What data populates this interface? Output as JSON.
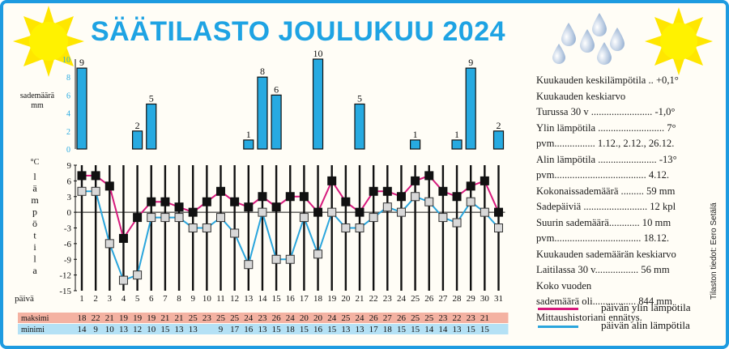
{
  "title": "SÄÄTILASTO JOULUKUU 2024",
  "credit": "Tilaston tiedot: Eero Setälä",
  "stats": [
    "Kuukauden keskilämpötila .. +0,1°",
    "Kuukauden keskiarvo",
    "Turussa 30 v ........................ -1,0°",
    "Ylin lämpötila .......................... 7°",
    "pvm................ 1.12., 2.12., 26.12.",
    "Alin lämpötila ....................... -13°",
    "pvm.................................... 4.12.",
    "Kokonaissademäärä ......... 59 mm",
    "Sadepäiviä ......................... 12 kpl",
    "Suurin sademäärä............ 10 mm",
    "pvm.................................. 18.12.",
    "Kuukauden sademäärän keskiarvo",
    "Laitilassa 30 v................. 56 mm",
    "Koko vuoden",
    "sademäärä oli................. 844 mm",
    "Mittaushistoriani ennätys."
  ],
  "legend": {
    "max_label": "päivän ylin lämpötila",
    "min_label": "päivän alin lämpötila",
    "max_color": "#d6197c",
    "min_color": "#2aa5dc"
  },
  "table": {
    "max_label": "maksimi",
    "min_label": "minimi",
    "max_bg": "#f4b2a2",
    "min_bg": "#b4e1f5",
    "max_values": [
      "18",
      "22",
      "21",
      "19",
      "19",
      "19",
      "21",
      "21",
      "25",
      "23",
      "25",
      "25",
      "24",
      "23",
      "26",
      "24",
      "20",
      "20",
      "24",
      "25",
      "24",
      "26",
      "27",
      "26",
      "25",
      "25",
      "23",
      "22",
      "23",
      "21"
    ],
    "min_values": [
      "14",
      "9",
      "10",
      "13",
      "12",
      "10",
      "15",
      "13",
      "13",
      "",
      "9",
      "17",
      "16",
      "13",
      "15",
      "18",
      "15",
      "16",
      "15",
      "13",
      "13",
      "17",
      "18",
      "15",
      "15",
      "14",
      "14",
      "13",
      "15",
      "15"
    ]
  },
  "chart_data": [
    {
      "type": "bar",
      "title": "",
      "ylabel": "sademäärä mm",
      "ylim": [
        0,
        10
      ],
      "yticks": [
        0,
        2,
        4,
        6,
        8,
        10
      ],
      "bar_color": "#27aae1",
      "x": [
        1,
        2,
        3,
        4,
        5,
        6,
        7,
        8,
        9,
        10,
        11,
        12,
        13,
        14,
        15,
        16,
        17,
        18,
        19,
        20,
        21,
        22,
        23,
        24,
        25,
        26,
        27,
        28,
        29,
        30,
        31
      ],
      "values": [
        9,
        0,
        0,
        0,
        2,
        5,
        0,
        0,
        0,
        0,
        0,
        0,
        1,
        8,
        6,
        0,
        0,
        10,
        0,
        0,
        5,
        0,
        0,
        0,
        1,
        0,
        0,
        1,
        9,
        0,
        2
      ],
      "labels": [
        "9",
        "",
        "",
        "",
        "2",
        "5",
        "",
        "",
        "",
        "",
        "",
        "",
        "1",
        "8",
        "6",
        "",
        "",
        "10",
        "",
        "",
        "5",
        "",
        "",
        "",
        "1",
        "",
        "",
        "1",
        "9",
        "",
        "2"
      ]
    },
    {
      "type": "line",
      "ylabel": "°C lämpötila",
      "xlabel": "päivä",
      "ylim": [
        -15,
        9
      ],
      "yticks": [
        -15,
        -12,
        -9,
        -6,
        -3,
        0,
        3,
        6,
        9
      ],
      "x": [
        1,
        2,
        3,
        4,
        5,
        6,
        7,
        8,
        9,
        10,
        11,
        12,
        13,
        14,
        15,
        16,
        17,
        18,
        19,
        20,
        21,
        22,
        23,
        24,
        25,
        26,
        27,
        28,
        29,
        30,
        31
      ],
      "grid": false,
      "series": [
        {
          "name": "päivän ylin lämpötila",
          "color": "#d6197c",
          "values": [
            7,
            7,
            5,
            -5,
            -1,
            2,
            2,
            1,
            0,
            2,
            4,
            2,
            1,
            3,
            1,
            3,
            3,
            0,
            6,
            2,
            0,
            4,
            4,
            3,
            6,
            7,
            4,
            3,
            5,
            6,
            0
          ]
        },
        {
          "name": "päivän alin lämpötila",
          "color": "#2aa5dc",
          "values": [
            4,
            4,
            -6,
            -13,
            -12,
            -1,
            -1,
            -1,
            -3,
            -3,
            -1,
            -4,
            -10,
            0,
            -9,
            -9,
            -1,
            -8,
            0,
            -3,
            -3,
            -1,
            1,
            0,
            3,
            2,
            -1,
            -2,
            2,
            0,
            -3
          ]
        }
      ]
    }
  ]
}
